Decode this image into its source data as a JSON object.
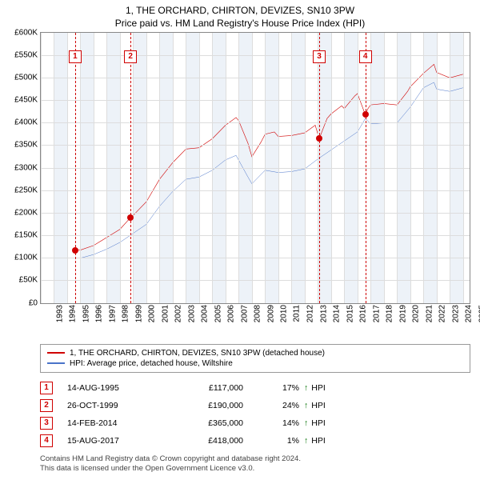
{
  "title": "1, THE ORCHARD, CHIRTON, DEVIZES, SN10 3PW",
  "subtitle": "Price paid vs. HM Land Registry's House Price Index (HPI)",
  "chart": {
    "type": "line",
    "background_color": "#ffffff",
    "grid_color": "#dddddd",
    "border_color": "#888888",
    "band_color": "#e6ecf5",
    "xlim": [
      1993,
      2025.5
    ],
    "ylim": [
      0,
      600000
    ],
    "ytick_step": 50000,
    "yticks": [
      "£0",
      "£50K",
      "£100K",
      "£150K",
      "£200K",
      "£250K",
      "£300K",
      "£350K",
      "£400K",
      "£450K",
      "£500K",
      "£550K",
      "£600K"
    ],
    "xticks": [
      1993,
      1994,
      1995,
      1996,
      1997,
      1998,
      1999,
      2000,
      2001,
      2002,
      2003,
      2004,
      2005,
      2006,
      2007,
      2008,
      2009,
      2010,
      2011,
      2012,
      2013,
      2014,
      2015,
      2016,
      2017,
      2018,
      2019,
      2020,
      2021,
      2022,
      2023,
      2024,
      2025
    ],
    "label_fontsize": 10,
    "series": [
      {
        "name": "1, THE ORCHARD, CHIRTON, DEVIZES, SN10 3PW (detached house)",
        "color": "#d00000",
        "line_width": 1.8,
        "data": [
          [
            1995.6,
            117000
          ],
          [
            1996,
            118000
          ],
          [
            1997,
            128000
          ],
          [
            1998,
            146000
          ],
          [
            1999,
            164000
          ],
          [
            1999.8,
            190000
          ],
          [
            2000,
            195000
          ],
          [
            2001,
            225000
          ],
          [
            2002,
            275000
          ],
          [
            2003,
            312000
          ],
          [
            2004,
            342000
          ],
          [
            2005,
            345000
          ],
          [
            2006,
            365000
          ],
          [
            2007,
            395000
          ],
          [
            2007.8,
            412000
          ],
          [
            2008,
            405000
          ],
          [
            2008.7,
            355000
          ],
          [
            2009,
            325000
          ],
          [
            2009.7,
            358000
          ],
          [
            2010,
            375000
          ],
          [
            2010.7,
            380000
          ],
          [
            2011,
            370000
          ],
          [
            2012,
            372000
          ],
          [
            2013,
            378000
          ],
          [
            2013.8,
            395000
          ],
          [
            2014.1,
            365000
          ],
          [
            2014.7,
            410000
          ],
          [
            2015,
            420000
          ],
          [
            2015.8,
            438000
          ],
          [
            2016,
            432000
          ],
          [
            2016.8,
            460000
          ],
          [
            2017,
            465000
          ],
          [
            2017.6,
            418000
          ],
          [
            2017.8,
            432000
          ],
          [
            2018,
            440000
          ],
          [
            2019,
            443000
          ],
          [
            2020,
            440000
          ],
          [
            2020.8,
            470000
          ],
          [
            2021,
            480000
          ],
          [
            2022,
            510000
          ],
          [
            2022.8,
            530000
          ],
          [
            2023,
            512000
          ],
          [
            2024,
            500000
          ],
          [
            2025,
            508000
          ]
        ]
      },
      {
        "name": "HPI: Average price, detached house, Wiltshire",
        "color": "#4a74c9",
        "line_width": 1.5,
        "data": [
          [
            1995,
            100000
          ],
          [
            1996,
            100000
          ],
          [
            1997,
            108000
          ],
          [
            1998,
            120000
          ],
          [
            1999,
            135000
          ],
          [
            2000,
            155000
          ],
          [
            2001,
            175000
          ],
          [
            2002,
            215000
          ],
          [
            2003,
            248000
          ],
          [
            2004,
            275000
          ],
          [
            2005,
            280000
          ],
          [
            2006,
            295000
          ],
          [
            2007,
            318000
          ],
          [
            2007.8,
            328000
          ],
          [
            2008.7,
            280000
          ],
          [
            2009,
            265000
          ],
          [
            2010,
            295000
          ],
          [
            2011,
            290000
          ],
          [
            2012,
            292000
          ],
          [
            2013,
            298000
          ],
          [
            2014,
            320000
          ],
          [
            2015,
            340000
          ],
          [
            2016,
            360000
          ],
          [
            2017,
            380000
          ],
          [
            2017.6,
            410000
          ],
          [
            2018,
            398000
          ],
          [
            2019,
            400000
          ],
          [
            2020,
            400000
          ],
          [
            2021,
            435000
          ],
          [
            2022,
            478000
          ],
          [
            2022.8,
            490000
          ],
          [
            2023,
            475000
          ],
          [
            2024,
            470000
          ],
          [
            2025,
            478000
          ]
        ]
      }
    ],
    "markers": [
      {
        "n": "1",
        "x": 1995.6,
        "y": 117000
      },
      {
        "n": "2",
        "x": 1999.8,
        "y": 190000
      },
      {
        "n": "3",
        "x": 2014.1,
        "y": 365000
      },
      {
        "n": "4",
        "x": 2017.6,
        "y": 418000
      }
    ],
    "marker_box_color": "#d00000",
    "marker_top_y": 560000
  },
  "legend": [
    {
      "color": "#d00000",
      "label": "1, THE ORCHARD, CHIRTON, DEVIZES, SN10 3PW (detached house)"
    },
    {
      "color": "#4a74c9",
      "label": "HPI: Average price, detached house, Wiltshire"
    }
  ],
  "events": [
    {
      "n": "1",
      "date": "14-AUG-1995",
      "price": "£117,000",
      "pct": "17%",
      "arrow": "↑",
      "tag": "HPI"
    },
    {
      "n": "2",
      "date": "26-OCT-1999",
      "price": "£190,000",
      "pct": "24%",
      "arrow": "↑",
      "tag": "HPI"
    },
    {
      "n": "3",
      "date": "14-FEB-2014",
      "price": "£365,000",
      "pct": "14%",
      "arrow": "↑",
      "tag": "HPI"
    },
    {
      "n": "4",
      "date": "15-AUG-2017",
      "price": "£418,000",
      "pct": "1%",
      "arrow": "↑",
      "tag": "HPI"
    }
  ],
  "attribution": {
    "line1": "Contains HM Land Registry data © Crown copyright and database right 2024.",
    "line2": "This data is licensed under the Open Government Licence v3.0."
  }
}
